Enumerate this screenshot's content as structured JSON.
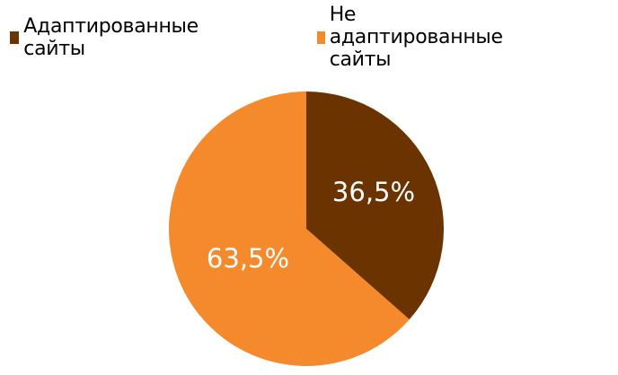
{
  "chart_data": {
    "type": "pie",
    "categories": [
      "Адаптированные сайты",
      "Не адаптированные сайты"
    ],
    "values": [
      36.5,
      63.5
    ],
    "data_labels": [
      "36,5%",
      "63,5%"
    ],
    "colors": [
      "#6B3300",
      "#F58A2C"
    ],
    "start_angle": "top",
    "direction": "clockwise",
    "legend_position": "top"
  }
}
